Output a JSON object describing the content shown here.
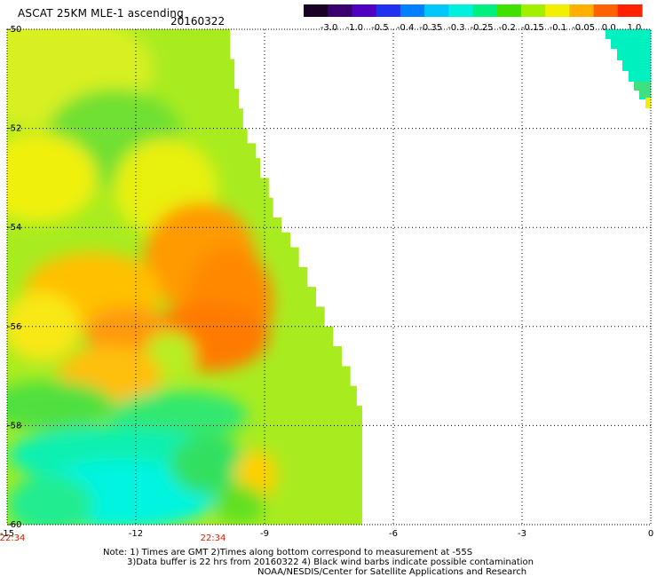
{
  "header": {
    "title": "ASCAT 25KM MLE-1 ascending",
    "date": "20160322"
  },
  "colorbar": {
    "labels": [
      "-3.0",
      "-1.0",
      "-0.5",
      "-0.4",
      "-0.35",
      "-0.3",
      "-0.25",
      "-0.2",
      "-0.15",
      "-0.1",
      "-0.05",
      "0.0",
      "1.0"
    ],
    "colors": [
      "#1a0024",
      "#3a0070",
      "#5000c0",
      "#2030f0",
      "#0080ff",
      "#00c8ff",
      "#00f0e0",
      "#00f080",
      "#40e000",
      "#a0f000",
      "#f0f000",
      "#ffb000",
      "#ff6000",
      "#ff2000"
    ]
  },
  "axes": {
    "x_ticks": [
      "-15",
      "-12",
      "-9",
      "-6",
      "-3",
      "0"
    ],
    "x_values": [
      -15,
      -12,
      -9,
      -6,
      -3,
      0
    ],
    "y_ticks": [
      "-50",
      "-52",
      "-54",
      "-56",
      "-58",
      "-60"
    ],
    "y_values": [
      -50,
      -52,
      -54,
      -56,
      -58,
      -60
    ],
    "time_labels": [
      {
        "text": "22:34",
        "lon": -15
      },
      {
        "text": "22:34",
        "lon": -10.2
      }
    ],
    "time_color": "#cc2200"
  },
  "notes": [
    "Note: 1) Times are GMT 2)Times along bottom correspond to measurement at -55S",
    "3)Data buffer is 22 hrs from 20160322 4) Black wind barbs indicate possible contamination",
    "NOAA/NESDIS/Center for Satellite Applications and Research"
  ]
}
